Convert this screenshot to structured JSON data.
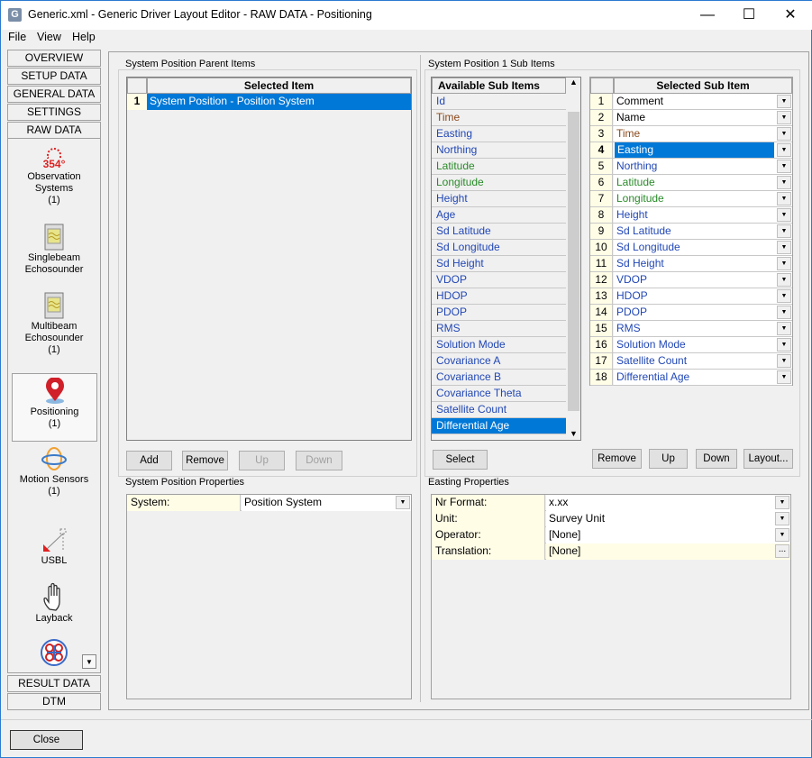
{
  "window": {
    "title": "Generic.xml - Generic Driver Layout Editor -  RAW DATA -  Positioning",
    "icon_letter": "G",
    "minimize": "—",
    "maximize": "☐",
    "close": "✕"
  },
  "menu": [
    "File",
    "View",
    "Help"
  ],
  "sidebar": {
    "top_tabs": [
      "OVERVIEW",
      "SETUP DATA",
      "GENERAL DATA",
      "SETTINGS",
      "RAW DATA"
    ],
    "items": [
      {
        "label": "Observation Systems",
        "count": "(1)",
        "icon": "observation-icon",
        "icon_text": "354°"
      },
      {
        "label": "Singlebeam Echosounder",
        "count": "",
        "icon": "singlebeam-icon"
      },
      {
        "label": "Multibeam Echosounder",
        "count": "(1)",
        "icon": "multibeam-icon"
      },
      {
        "label": "Positioning",
        "count": "(1)",
        "icon": "map-pin-icon",
        "selected": true
      },
      {
        "label": "Motion Sensors",
        "count": "(1)",
        "icon": "motion-icon"
      },
      {
        "label": "USBL",
        "count": "",
        "icon": "usbl-icon"
      },
      {
        "label": "Layback",
        "count": "",
        "icon": "hand-icon"
      },
      {
        "label": "",
        "count": "",
        "icon": "rov-icon"
      }
    ],
    "scroll_down": "▼",
    "bottom_tabs": [
      "RESULT DATA",
      "DTM"
    ]
  },
  "parent_items": {
    "group_label": "System Position Parent Items",
    "header": "Selected Item",
    "rows": [
      {
        "num": "1",
        "value": "System Position  -  Position System"
      }
    ],
    "buttons": {
      "add": "Add",
      "remove": "Remove",
      "up": "Up",
      "down": "Down"
    }
  },
  "parent_props": {
    "group_label": "System Position Properties",
    "rows": [
      {
        "label": "System:",
        "value": "Position System"
      }
    ]
  },
  "sub_items": {
    "group_label": "System Position 1 Sub Items",
    "available_header": "Available Sub Items",
    "available": [
      {
        "t": "Id",
        "c": "blue"
      },
      {
        "t": "Time",
        "c": "brown"
      },
      {
        "t": "Easting",
        "c": "blue"
      },
      {
        "t": "Northing",
        "c": "blue"
      },
      {
        "t": "Latitude",
        "c": "green"
      },
      {
        "t": "Longitude",
        "c": "green"
      },
      {
        "t": "Height",
        "c": "blue"
      },
      {
        "t": "Age",
        "c": "blue"
      },
      {
        "t": "Sd Latitude",
        "c": "blue"
      },
      {
        "t": "Sd Longitude",
        "c": "blue"
      },
      {
        "t": "Sd Height",
        "c": "blue"
      },
      {
        "t": "VDOP",
        "c": "blue"
      },
      {
        "t": "HDOP",
        "c": "blue"
      },
      {
        "t": "PDOP",
        "c": "blue"
      },
      {
        "t": "RMS",
        "c": "blue"
      },
      {
        "t": "Solution Mode",
        "c": "blue"
      },
      {
        "t": "Covariance A",
        "c": "blue"
      },
      {
        "t": "Covariance B",
        "c": "blue"
      },
      {
        "t": "Covariance Theta",
        "c": "blue"
      },
      {
        "t": "Satellite Count",
        "c": "blue"
      },
      {
        "t": "Differential Age",
        "c": "blue",
        "selected": true
      }
    ],
    "selected_header": "Selected Sub Item",
    "selected": [
      {
        "n": "1",
        "t": "Comment",
        "c": ""
      },
      {
        "n": "2",
        "t": "Name",
        "c": ""
      },
      {
        "n": "3",
        "t": "Time",
        "c": "brown"
      },
      {
        "n": "4",
        "t": "Easting",
        "c": "blue",
        "selected": true
      },
      {
        "n": "5",
        "t": "Northing",
        "c": "blue"
      },
      {
        "n": "6",
        "t": "Latitude",
        "c": "green"
      },
      {
        "n": "7",
        "t": "Longitude",
        "c": "green"
      },
      {
        "n": "8",
        "t": "Height",
        "c": "blue"
      },
      {
        "n": "9",
        "t": "Sd Latitude",
        "c": "blue"
      },
      {
        "n": "10",
        "t": "Sd Longitude",
        "c": "blue"
      },
      {
        "n": "11",
        "t": "Sd Height",
        "c": "blue"
      },
      {
        "n": "12",
        "t": "VDOP",
        "c": "blue"
      },
      {
        "n": "13",
        "t": "HDOP",
        "c": "blue"
      },
      {
        "n": "14",
        "t": "PDOP",
        "c": "blue"
      },
      {
        "n": "15",
        "t": "RMS",
        "c": "blue"
      },
      {
        "n": "16",
        "t": "Solution Mode",
        "c": "blue"
      },
      {
        "n": "17",
        "t": "Satellite Count",
        "c": "blue"
      },
      {
        "n": "18",
        "t": "Differential Age",
        "c": "blue"
      }
    ],
    "buttons": {
      "select": "Select",
      "remove": "Remove",
      "up": "Up",
      "down": "Down",
      "layout": "Layout..."
    }
  },
  "sub_props": {
    "group_label": "Easting Properties",
    "rows": [
      {
        "label": "Nr Format:",
        "value": "x.xx",
        "control": "dropdown"
      },
      {
        "label": "Unit:",
        "value": "Survey Unit",
        "control": "dropdown"
      },
      {
        "label": "Operator:",
        "value": "[None]",
        "control": "dropdown"
      },
      {
        "label": "Translation:",
        "value": "[None]",
        "control": "ellipsis"
      }
    ]
  },
  "footer": {
    "close": "Close"
  },
  "colors": {
    "blue": "#2147b5",
    "brown": "#8a4a1c",
    "green": "#2a8a2a",
    "selection": "#0078d7",
    "key_cell": "#fffde6"
  }
}
